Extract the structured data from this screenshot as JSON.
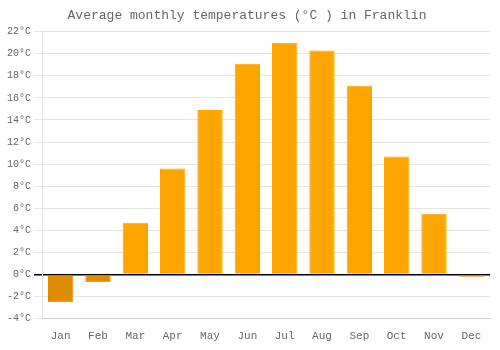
{
  "chart_data": {
    "type": "bar",
    "title": "Average monthly temperatures (°C ) in Franklin",
    "categories": [
      "Jan",
      "Feb",
      "Mar",
      "Apr",
      "May",
      "Jun",
      "Jul",
      "Aug",
      "Sep",
      "Oct",
      "Nov",
      "Dec"
    ],
    "values": [
      -2.5,
      -0.7,
      4.7,
      9.6,
      14.9,
      19.1,
      21.0,
      20.3,
      17.1,
      10.7,
      5.5,
      -0.2
    ],
    "colors": [
      "#E08C00",
      "#E08C00",
      "#FFA500",
      "#FFA500",
      "#FFA500",
      "#FFA500",
      "#FFA500",
      "#FFA500",
      "#FFA500",
      "#FFA500",
      "#FFA500",
      "#E08C00"
    ],
    "ylim": [
      -4,
      22
    ],
    "yticks": [
      {
        "value": -4,
        "label": "-4°C"
      },
      {
        "value": -2,
        "label": "-2°C"
      },
      {
        "value": 0,
        "label": "0°C"
      },
      {
        "value": 2,
        "label": "2°C"
      },
      {
        "value": 4,
        "label": "4°C"
      },
      {
        "value": 6,
        "label": "6°C"
      },
      {
        "value": 8,
        "label": "8°C"
      },
      {
        "value": 10,
        "label": "10°C"
      },
      {
        "value": 12,
        "label": "12°C"
      },
      {
        "value": 14,
        "label": "14°C"
      },
      {
        "value": 16,
        "label": "16°C"
      },
      {
        "value": 18,
        "label": "18°C"
      },
      {
        "value": 20,
        "label": "20°C"
      },
      {
        "value": 22,
        "label": "22°C"
      }
    ],
    "grid": true
  }
}
